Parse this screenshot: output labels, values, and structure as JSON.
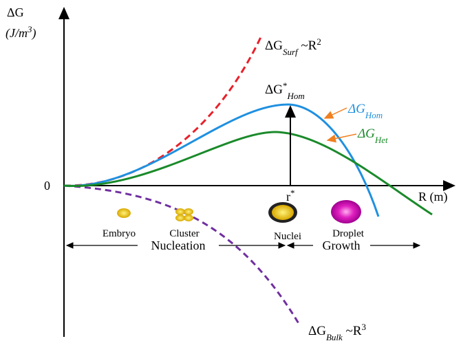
{
  "axes": {
    "y_label_1": "ΔG",
    "y_label_2": {
      "open": "(J/m",
      "sup": "3",
      "close": ")"
    },
    "origin": "0",
    "x_label": "R (m)",
    "r_star": {
      "base": "r",
      "sup": "*"
    }
  },
  "curves": {
    "surf": {
      "base": "ΔG",
      "sub": "Surf",
      "rest": " ~R",
      "sup": "2"
    },
    "barrier": {
      "base": "ΔG",
      "sup": "*",
      "sub": "Hom"
    },
    "hom": {
      "base": "ΔG",
      "sub": "Hom"
    },
    "het": {
      "base": "ΔG",
      "sub": "Het"
    },
    "bulk": {
      "base": "ΔG",
      "sub": "Bulk",
      "rest": " ~R",
      "sup": "3"
    }
  },
  "stages": [
    "Embryo",
    "Cluster",
    "Nuclei",
    "Droplet"
  ],
  "phases": [
    "Nucleation",
    "Growth"
  ]
}
